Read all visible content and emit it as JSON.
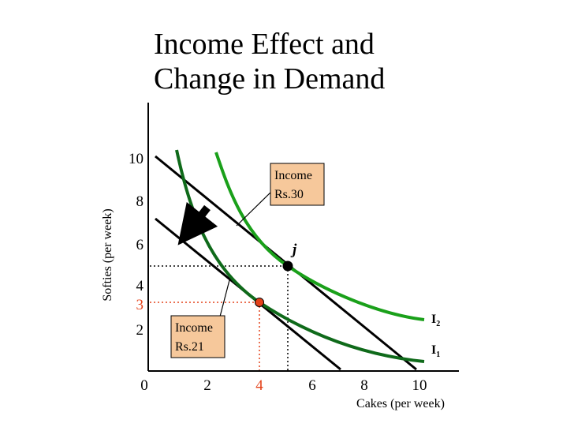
{
  "title_line1": "Income Effect and",
  "title_line2": "Change in Demand",
  "x_axis_label": "Cakes (per week)",
  "y_axis_label": "Softies (per week)",
  "x_ticks": [
    "0",
    "2",
    "4",
    "6",
    "8",
    "10"
  ],
  "y_ticks": [
    "2",
    "4",
    "6",
    "8",
    "10"
  ],
  "highlight_x_tick": "4",
  "highlight_y_tick": "3",
  "point_j_label": "j",
  "curve_labels": {
    "I2": {
      "main": "I",
      "sub": "2"
    },
    "I1": {
      "main": "I",
      "sub": "1"
    }
  },
  "callouts": {
    "high_income": {
      "line1": "Income",
      "line2": "Rs.30"
    },
    "low_income": {
      "line1": "Income",
      "line2": "Rs.21"
    }
  },
  "colors": {
    "curve_I2": "#1aa01a",
    "curve_I1": "#0f6a1a",
    "highlight": "#e4421a",
    "callout_fill": "#f6c89b"
  }
}
